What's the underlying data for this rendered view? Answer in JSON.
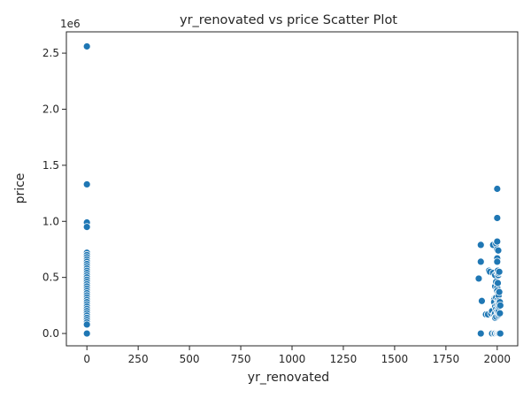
{
  "chart_data": {
    "type": "scatter",
    "title": "yr_renovated vs price Scatter Plot",
    "xlabel": "yr_renovated",
    "ylabel": "price",
    "y_offset_label": "1e6",
    "xlim": [
      -100,
      2100
    ],
    "ylim": [
      -110000,
      2690000
    ],
    "x_ticks": [
      0,
      250,
      500,
      750,
      1000,
      1250,
      1500,
      1750,
      2000
    ],
    "x_tick_labels": [
      "0",
      "250",
      "500",
      "750",
      "1000",
      "1250",
      "1500",
      "1750",
      "2000"
    ],
    "y_ticks": [
      0,
      500000,
      1000000,
      1500000,
      2000000,
      2500000
    ],
    "y_tick_labels": [
      "0.0",
      "0.5",
      "1.0",
      "1.5",
      "2.0",
      "2.5"
    ],
    "grid": false,
    "marker_color": "#1f77b4",
    "points": [
      [
        0,
        2560000
      ],
      [
        0,
        1330000
      ],
      [
        0,
        990000
      ],
      [
        0,
        950000
      ],
      [
        0,
        720000
      ],
      [
        0,
        700000
      ],
      [
        0,
        680000
      ],
      [
        0,
        660000
      ],
      [
        0,
        640000
      ],
      [
        0,
        620000
      ],
      [
        0,
        600000
      ],
      [
        0,
        580000
      ],
      [
        0,
        560000
      ],
      [
        0,
        540000
      ],
      [
        0,
        520000
      ],
      [
        0,
        500000
      ],
      [
        0,
        480000
      ],
      [
        0,
        460000
      ],
      [
        0,
        440000
      ],
      [
        0,
        420000
      ],
      [
        0,
        400000
      ],
      [
        0,
        380000
      ],
      [
        0,
        360000
      ],
      [
        0,
        340000
      ],
      [
        0,
        320000
      ],
      [
        0,
        300000
      ],
      [
        0,
        280000
      ],
      [
        0,
        260000
      ],
      [
        0,
        240000
      ],
      [
        0,
        220000
      ],
      [
        0,
        200000
      ],
      [
        0,
        180000
      ],
      [
        0,
        160000
      ],
      [
        0,
        140000
      ],
      [
        0,
        120000
      ],
      [
        0,
        100000
      ],
      [
        0,
        80000
      ],
      [
        0,
        0
      ],
      [
        1920,
        790000
      ],
      [
        1920,
        640000
      ],
      [
        1910,
        490000
      ],
      [
        1925,
        290000
      ],
      [
        1920,
        0
      ],
      [
        1945,
        170000
      ],
      [
        1955,
        170000
      ],
      [
        1960,
        560000
      ],
      [
        1965,
        550000
      ],
      [
        1970,
        180000
      ],
      [
        1975,
        200000
      ],
      [
        1975,
        0
      ],
      [
        1980,
        790000
      ],
      [
        1980,
        540000
      ],
      [
        1985,
        310000
      ],
      [
        1985,
        300000
      ],
      [
        1985,
        280000
      ],
      [
        1985,
        170000
      ],
      [
        1985,
        0
      ],
      [
        1990,
        520000
      ],
      [
        1990,
        420000
      ],
      [
        1990,
        240000
      ],
      [
        1990,
        180000
      ],
      [
        1990,
        140000
      ],
      [
        1990,
        0
      ],
      [
        1995,
        800000
      ],
      [
        1995,
        460000
      ],
      [
        1995,
        320000
      ],
      [
        1995,
        220000
      ],
      [
        1995,
        150000
      ],
      [
        1998,
        0
      ],
      [
        2000,
        1290000
      ],
      [
        2000,
        1030000
      ],
      [
        2000,
        820000
      ],
      [
        2000,
        750000
      ],
      [
        2000,
        670000
      ],
      [
        2000,
        640000
      ],
      [
        2000,
        540000
      ],
      [
        2000,
        410000
      ],
      [
        2000,
        380000
      ],
      [
        2000,
        260000
      ],
      [
        2000,
        200000
      ],
      [
        2000,
        0
      ],
      [
        2003,
        560000
      ],
      [
        2003,
        450000
      ],
      [
        2003,
        300000
      ],
      [
        2003,
        180000
      ],
      [
        2005,
        740000
      ],
      [
        2005,
        520000
      ],
      [
        2005,
        360000
      ],
      [
        2005,
        280000
      ],
      [
        2005,
        220000
      ],
      [
        2005,
        160000
      ],
      [
        2005,
        0
      ],
      [
        2007,
        540000
      ],
      [
        2007,
        340000
      ],
      [
        2007,
        260000
      ],
      [
        2007,
        200000
      ],
      [
        2008,
        0
      ],
      [
        2010,
        550000
      ],
      [
        2010,
        370000
      ],
      [
        2010,
        290000
      ],
      [
        2010,
        240000
      ],
      [
        2010,
        170000
      ],
      [
        2010,
        0
      ],
      [
        2013,
        280000
      ],
      [
        2013,
        180000
      ],
      [
        2015,
        250000
      ],
      [
        2015,
        0
      ]
    ]
  }
}
